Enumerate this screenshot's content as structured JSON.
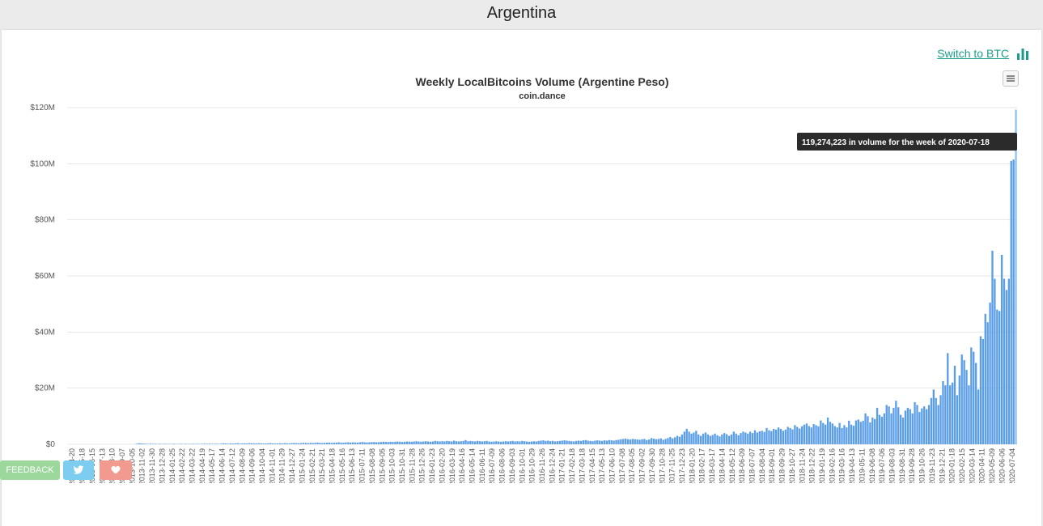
{
  "page": {
    "title": "Argentina"
  },
  "controls": {
    "switch_label": "Switch to BTC"
  },
  "footer": {
    "feedback_label": "FEEDBACK"
  },
  "colors": {
    "bar": "#5b9ee8",
    "bar_highlight": "#8fc0f2",
    "link": "#1a9c8a",
    "feedback": "#9cd79c",
    "twitter": "#7ccdf0",
    "heart": "#f29a90",
    "tooltip_bg": "#2b2b2b"
  },
  "icons": [
    "bar-chart-icon",
    "hamburger-icon",
    "twitter-icon",
    "heart-icon"
  ],
  "chart_data": {
    "type": "bar",
    "title": "Weekly LocalBitcoins Volume (Argentine Peso)",
    "subtitle": "coin.dance",
    "xlabel": "",
    "ylabel": "",
    "ylim": [
      0,
      120000000
    ],
    "y_ticks": [
      {
        "value": 0,
        "label": "$0"
      },
      {
        "value": 20000000,
        "label": "$20M"
      },
      {
        "value": 40000000,
        "label": "$40M"
      },
      {
        "value": 60000000,
        "label": "$60M"
      },
      {
        "value": 80000000,
        "label": "$80M"
      },
      {
        "value": 100000000,
        "label": "$100M"
      },
      {
        "value": 120000000,
        "label": "$120M"
      }
    ],
    "x_tick_labels": [
      "2013-04-20",
      "2013-05-18",
      "2013-06-15",
      "2013-07-13",
      "2013-08-10",
      "2013-09-07",
      "2013-10-05",
      "2013-11-02",
      "2013-11-30",
      "2013-12-28",
      "2014-01-25",
      "2014-02-22",
      "2014-03-22",
      "2014-04-19",
      "2014-05-17",
      "2014-06-14",
      "2014-07-12",
      "2014-08-09",
      "2014-09-06",
      "2014-10-04",
      "2014-11-01",
      "2014-11-29",
      "2014-12-27",
      "2015-01-24",
      "2015-02-21",
      "2015-03-21",
      "2015-04-18",
      "2015-05-16",
      "2015-06-13",
      "2015-07-11",
      "2015-08-08",
      "2015-09-05",
      "2015-10-03",
      "2015-10-31",
      "2015-11-28",
      "2015-12-26",
      "2016-01-23",
      "2016-02-20",
      "2016-03-19",
      "2016-04-16",
      "2016-05-14",
      "2016-06-11",
      "2016-07-09",
      "2016-08-06",
      "2016-09-03",
      "2016-10-01",
      "2016-10-29",
      "2016-11-26",
      "2016-12-24",
      "2017-01-21",
      "2017-02-18",
      "2017-03-18",
      "2017-04-15",
      "2017-05-13",
      "2017-06-10",
      "2017-07-08",
      "2017-08-05",
      "2017-09-02",
      "2017-09-30",
      "2017-10-28",
      "2017-11-25",
      "2017-12-23",
      "2018-01-20",
      "2018-02-17",
      "2018-03-17",
      "2018-04-14",
      "2018-05-12",
      "2018-06-09",
      "2018-07-07",
      "2018-08-04",
      "2018-09-01",
      "2018-09-29",
      "2018-10-27",
      "2018-11-24",
      "2018-12-22",
      "2019-01-19",
      "2019-02-16",
      "2019-03-16",
      "2019-04-13",
      "2019-05-11",
      "2019-06-08",
      "2019-07-06",
      "2019-08-03",
      "2019-08-31",
      "2019-09-28",
      "2019-10-26",
      "2019-11-23",
      "2019-12-21",
      "2020-01-18",
      "2020-02-15",
      "2020-03-14",
      "2020-04-11",
      "2020-05-09",
      "2020-06-06",
      "2020-07-04"
    ],
    "series": [
      {
        "values": [
          0,
          0,
          0,
          0,
          0,
          0,
          0,
          0,
          0,
          0,
          0,
          0,
          0,
          0,
          0,
          0,
          0,
          0,
          0,
          0,
          0,
          0,
          0,
          0,
          0,
          0,
          0,
          0,
          0,
          200000,
          350000,
          300000,
          250000,
          200000,
          150000,
          200000,
          150000,
          150000,
          100000,
          150000,
          100000,
          150000,
          100000,
          100000,
          100000,
          150000,
          100000,
          100000,
          150000,
          100000,
          150000,
          100000,
          100000,
          150000,
          100000,
          150000,
          100000,
          150000,
          200000,
          150000,
          200000,
          150000,
          150000,
          200000,
          150000,
          200000,
          300000,
          250000,
          200000,
          300000,
          250000,
          300000,
          400000,
          250000,
          300000,
          350000,
          300000,
          400000,
          350000,
          300000,
          300000,
          350000,
          300000,
          250000,
          300000,
          350000,
          400000,
          300000,
          250000,
          300000,
          350000,
          300000,
          400000,
          350000,
          300000,
          400000,
          450000,
          400000,
          350000,
          400000,
          500000,
          450000,
          400000,
          500000,
          450000,
          500000,
          600000,
          500000,
          450000,
          500000,
          550000,
          600000,
          500000,
          550000,
          600000,
          700000,
          600000,
          550000,
          650000,
          700000,
          600000,
          700000,
          650000,
          600000,
          700000,
          800000,
          700000,
          650000,
          700000,
          750000,
          800000,
          700000,
          750000,
          800000,
          900000,
          850000,
          800000,
          900000,
          850000,
          900000,
          1000000,
          900000,
          800000,
          900000,
          1000000,
          950000,
          900000,
          1000000,
          1100000,
          1000000,
          900000,
          1000000,
          1100000,
          1000000,
          900000,
          1000000,
          1200000,
          1100000,
          1000000,
          1100000,
          1000000,
          1200000,
          1100000,
          1000000,
          1300000,
          1100000,
          1000000,
          1100000,
          1200000,
          1500000,
          1100000,
          1200000,
          1100000,
          1000000,
          1200000,
          1100000,
          1000000,
          1100000,
          1200000,
          1000000,
          900000,
          1000000,
          1100000,
          1000000,
          900000,
          1000000,
          1100000,
          1000000,
          1100000,
          1200000,
          1000000,
          1100000,
          1000000,
          1200000,
          1100000,
          1000000,
          900000,
          1000000,
          1100000,
          1000000,
          1200000,
          1300000,
          1400000,
          1200000,
          1300000,
          1100000,
          1200000,
          1000000,
          1100000,
          1200000,
          1300000,
          1400000,
          1300000,
          1200000,
          1100000,
          1000000,
          1200000,
          1300000,
          1200000,
          1400000,
          1500000,
          1300000,
          1200000,
          1100000,
          1300000,
          1400000,
          1300000,
          1200000,
          1400000,
          1300000,
          1500000,
          1400000,
          1300000,
          1500000,
          1600000,
          1800000,
          1900000,
          2000000,
          1800000,
          1700000,
          1900000,
          1800000,
          1700000,
          1600000,
          1800000,
          1900000,
          1500000,
          1700000,
          2200000,
          2000000,
          1800000,
          1900000,
          2100000,
          1600000,
          1900000,
          2200000,
          2600000,
          2100000,
          2500000,
          3000000,
          2700000,
          3500000,
          4500000,
          5500000,
          4500000,
          3800000,
          4200000,
          4800000,
          3500000,
          3000000,
          3800000,
          4200000,
          3500000,
          3000000,
          3300000,
          3800000,
          3200000,
          2800000,
          3500000,
          4000000,
          3600000,
          3000000,
          3500000,
          4500000,
          3800000,
          3200000,
          4000000,
          4500000,
          4200000,
          3800000,
          4500000,
          4000000,
          5000000,
          4200000,
          4600000,
          4800000,
          4400000,
          5800000,
          5000000,
          4700000,
          5500000,
          5200000,
          6000000,
          5500000,
          4800000,
          5200000,
          6200000,
          5800000,
          5300000,
          6800000,
          6200000,
          5600000,
          6400000,
          7000000,
          7400000,
          6500000,
          6000000,
          7200000,
          6800000,
          6400000,
          8500000,
          7600000,
          7000000,
          9500000,
          8000000,
          7400000,
          6500000,
          6000000,
          7600000,
          5800000,
          6800000,
          6000000,
          8400000,
          7000000,
          6600000,
          8500000,
          8800000,
          8000000,
          8400000,
          11000000,
          10000000,
          7800000,
          9500000,
          9000000,
          13000000,
          10500000,
          9800000,
          11000000,
          14000000,
          13500000,
          11000000,
          13000000,
          15500000,
          13200000,
          10500000,
          9500000,
          12000000,
          13000000,
          12500000,
          11000000,
          15000000,
          14000000,
          11500000,
          12800000,
          13500000,
          12500000,
          14000000,
          16500000,
          19500000,
          16500000,
          14000000,
          17500000,
          22500000,
          21000000,
          32500000,
          21000000,
          22000000,
          28000000,
          17500000,
          24500000,
          32000000,
          30000000,
          26500000,
          21000000,
          34500000,
          33000000,
          29000000,
          19500000,
          38500000,
          37500000,
          46500000,
          43500000,
          50500000,
          69000000,
          59000000,
          48000000,
          47500000,
          67500000,
          59000000,
          55000000,
          59000000,
          101000000,
          101500000,
          119274223
        ]
      }
    ],
    "tooltip": "119,274,223 in volume for the week of 2020-07-18",
    "grid": true,
    "legend": "none"
  }
}
